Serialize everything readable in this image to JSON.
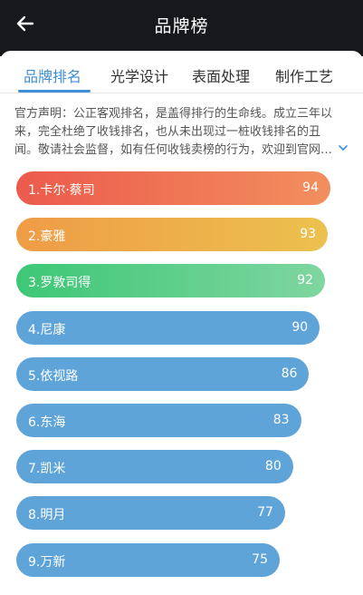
{
  "header": {
    "title": "品牌榜"
  },
  "tabs": [
    {
      "label": "品牌排名",
      "active": true
    },
    {
      "label": "光学设计",
      "active": false
    },
    {
      "label": "表面处理",
      "active": false
    },
    {
      "label": "制作工艺",
      "active": false
    }
  ],
  "notice": {
    "lines": [
      "官方声明：公正客观排名，是盖得排行的生命线。成立三年以",
      "来，完全杜绝了收钱排名，也从未出现过一桩收钱排名的丑",
      "闻。敬请社会监督，如有任何收钱卖榜的行为，欢迎到官网…"
    ]
  },
  "ranking": [
    {
      "label": "1.卡尔·蔡司",
      "score": "94",
      "value": 94,
      "colors": [
        "#ec5a4c",
        "#f28f5e"
      ]
    },
    {
      "label": "2.豪雅",
      "score": "93",
      "value": 93,
      "colors": [
        "#ef9c46",
        "#ecc14e"
      ]
    },
    {
      "label": "3.罗敦司得",
      "score": "92",
      "value": 92,
      "colors": [
        "#3dc776",
        "#7fd6a0"
      ]
    },
    {
      "label": "4.尼康",
      "score": "90",
      "value": 90,
      "colors": [
        "#5fa4d9",
        "#5fa4d9"
      ]
    },
    {
      "label": "5.依视路",
      "score": "86",
      "value": 86,
      "colors": [
        "#5fa4d9",
        "#5fa4d9"
      ]
    },
    {
      "label": "6.东海",
      "score": "83",
      "value": 83,
      "colors": [
        "#5fa4d9",
        "#5fa4d9"
      ]
    },
    {
      "label": "7.凯米",
      "score": "80",
      "value": 80,
      "colors": [
        "#5fa4d9",
        "#5fa4d9"
      ]
    },
    {
      "label": "8.明月",
      "score": "77",
      "value": 77,
      "colors": [
        "#5fa4d9",
        "#5fa4d9"
      ]
    },
    {
      "label": "9.万新",
      "score": "75",
      "value": 75,
      "colors": [
        "#5fa4d9",
        "#5fa4d9"
      ]
    }
  ],
  "colors": {
    "header_bg": "#16181c",
    "accent": "#3f8fd8",
    "text": "#333333"
  },
  "icons": {
    "back": "arrow-left-icon",
    "expand": "chevron-down-icon"
  }
}
